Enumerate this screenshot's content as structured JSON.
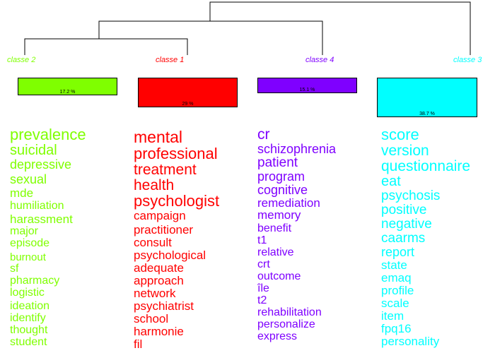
{
  "classes": [
    {
      "label": "classe 2",
      "color": "#7fff00",
      "percent_value": 17.2,
      "percent_label": "17.2 %",
      "words": [
        "prevalence",
        "suicidal",
        "depressive",
        "sexual",
        "mde",
        "humiliation",
        "harassment",
        "major",
        "episode",
        "burnout",
        "sf",
        "pharmacy",
        "logistic",
        "ideation",
        "identify",
        "thought",
        "student"
      ]
    },
    {
      "label": "classe 1",
      "color": "#ff0000",
      "percent_value": 29,
      "percent_label": "29 %",
      "words": [
        "mental",
        "professional",
        "treatment",
        "health",
        "psychologist",
        "campaign",
        "practitioner",
        "consult",
        "psychological",
        "adequate",
        "approach",
        "network",
        "psychiatrist",
        "school",
        "harmonie",
        "fil"
      ]
    },
    {
      "label": "classe 4",
      "color": "#7f00ff",
      "percent_value": 15.1,
      "percent_label": "15.1 %",
      "words": [
        "cr",
        "schizophrenia",
        "patient",
        "program",
        "cognitive",
        "remediation",
        "memory",
        "benefit",
        "t1",
        "relative",
        "crt",
        "outcome",
        "île",
        "t2",
        "rehabilitation",
        "personalize",
        "express"
      ]
    },
    {
      "label": "classe 3",
      "color": "#00ffff",
      "percent_value": 38.7,
      "percent_label": "38.7 %",
      "words": [
        "score",
        "version",
        "questionnaire",
        "eat",
        "psychosis",
        "positive",
        "negative",
        "caarms",
        "report",
        "state",
        "emaq",
        "profile",
        "scale",
        "item",
        "fpq16",
        "personality"
      ]
    }
  ]
}
